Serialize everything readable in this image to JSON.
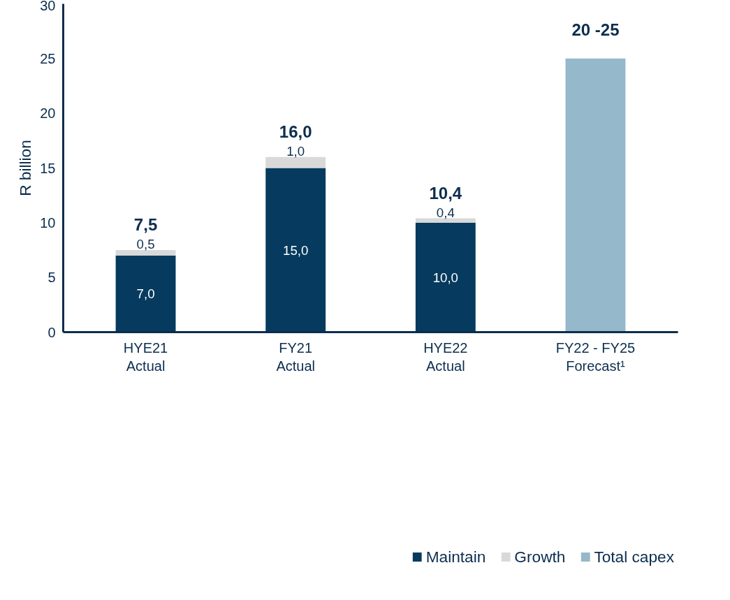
{
  "chart_data": {
    "type": "bar",
    "stacked": true,
    "ylabel": "R billion",
    "categories": [
      "HYE21\nActual",
      "FY21\nActual",
      "HYE22\nActual",
      "FY22 - FY25\nForecast¹"
    ],
    "series": [
      {
        "name": "Maintain",
        "color": "#063a5e",
        "values": [
          7.0,
          15.0,
          10.0,
          null
        ],
        "value_labels": [
          "7,0",
          "15,0",
          "10,0",
          null
        ]
      },
      {
        "name": "Growth",
        "color": "#d9d9d9",
        "values": [
          0.5,
          1.0,
          0.4,
          null
        ],
        "value_labels": [
          "0,5",
          "1,0",
          "0,4",
          null
        ]
      },
      {
        "name": "Total capex",
        "color": "#95b8cb",
        "values": [
          null,
          null,
          null,
          25
        ],
        "value_labels": [
          null,
          null,
          null,
          null
        ]
      }
    ],
    "totals": [
      "7,5",
      "16,0",
      "10,4",
      "20 -25"
    ],
    "ylim": [
      0,
      30
    ],
    "yticks": [
      0,
      5,
      10,
      15,
      20,
      25,
      30
    ],
    "grid": false,
    "legend": "bottom"
  }
}
